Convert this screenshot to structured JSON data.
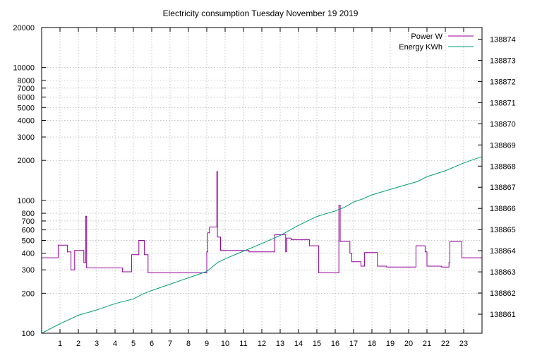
{
  "chart_data": {
    "type": "line",
    "title": "Electricity consumption Tuesday November 19 2019",
    "xlabel": "",
    "ylabel": "",
    "y2label": "",
    "grid": true,
    "legend_position": "top-right",
    "xlim": [
      0,
      24
    ],
    "x_ticks": [
      1,
      2,
      3,
      4,
      5,
      6,
      7,
      8,
      9,
      10,
      11,
      12,
      13,
      14,
      15,
      16,
      17,
      18,
      19,
      20,
      21,
      22,
      23
    ],
    "y_scale": "log",
    "ylim": [
      100,
      20000
    ],
    "y_ticks": [
      100,
      200,
      300,
      400,
      500,
      600,
      700,
      800,
      1000,
      2000,
      3000,
      4000,
      5000,
      6000,
      7000,
      8000,
      10000,
      20000
    ],
    "y2lim": [
      138860.1,
      138874.55
    ],
    "y2_ticks": [
      138861,
      138862,
      138863,
      138864,
      138865,
      138866,
      138867,
      138868,
      138869,
      138870,
      138871,
      138872,
      138873,
      138874
    ],
    "series": [
      {
        "name": "Power W",
        "axis": "left",
        "color": "#94009b",
        "points": [
          [
            0,
            370
          ],
          [
            0.9,
            370
          ],
          [
            0.9,
            460
          ],
          [
            1.4,
            460
          ],
          [
            1.4,
            410
          ],
          [
            1.6,
            410
          ],
          [
            1.6,
            300
          ],
          [
            1.8,
            300
          ],
          [
            1.8,
            420
          ],
          [
            2.3,
            420
          ],
          [
            2.3,
            340
          ],
          [
            2.4,
            340
          ],
          [
            2.4,
            760
          ],
          [
            2.45,
            760
          ],
          [
            2.45,
            310
          ],
          [
            4.4,
            310
          ],
          [
            4.4,
            290
          ],
          [
            4.9,
            290
          ],
          [
            4.9,
            390
          ],
          [
            5.3,
            390
          ],
          [
            5.3,
            500
          ],
          [
            5.6,
            500
          ],
          [
            5.6,
            390
          ],
          [
            5.8,
            390
          ],
          [
            5.8,
            285
          ],
          [
            9.0,
            285
          ],
          [
            9.0,
            410
          ],
          [
            9.05,
            410
          ],
          [
            9.05,
            570
          ],
          [
            9.15,
            570
          ],
          [
            9.15,
            630
          ],
          [
            9.55,
            630
          ],
          [
            9.55,
            1650
          ],
          [
            9.58,
            1650
          ],
          [
            9.58,
            530
          ],
          [
            9.75,
            530
          ],
          [
            9.75,
            420
          ],
          [
            11.3,
            420
          ],
          [
            11.3,
            410
          ],
          [
            12.7,
            410
          ],
          [
            12.7,
            550
          ],
          [
            13.3,
            550
          ],
          [
            13.3,
            410
          ],
          [
            13.35,
            410
          ],
          [
            13.35,
            520
          ],
          [
            13.6,
            520
          ],
          [
            13.6,
            505
          ],
          [
            14.6,
            505
          ],
          [
            14.6,
            455
          ],
          [
            15.1,
            455
          ],
          [
            15.1,
            285
          ],
          [
            16.2,
            285
          ],
          [
            16.2,
            920
          ],
          [
            16.27,
            920
          ],
          [
            16.27,
            490
          ],
          [
            16.8,
            490
          ],
          [
            16.8,
            400
          ],
          [
            16.9,
            400
          ],
          [
            16.9,
            345
          ],
          [
            17.4,
            345
          ],
          [
            17.4,
            320
          ],
          [
            17.6,
            320
          ],
          [
            17.6,
            405
          ],
          [
            18.3,
            405
          ],
          [
            18.3,
            320
          ],
          [
            18.8,
            320
          ],
          [
            18.8,
            315
          ],
          [
            20.4,
            315
          ],
          [
            20.4,
            455
          ],
          [
            20.9,
            455
          ],
          [
            20.9,
            410
          ],
          [
            21.0,
            410
          ],
          [
            21.0,
            320
          ],
          [
            21.8,
            320
          ],
          [
            21.8,
            315
          ],
          [
            22.2,
            315
          ],
          [
            22.2,
            340
          ],
          [
            22.25,
            340
          ],
          [
            22.25,
            490
          ],
          [
            22.9,
            490
          ],
          [
            22.9,
            370
          ],
          [
            24,
            370
          ]
        ]
      },
      {
        "name": "Energy KWh",
        "axis": "right",
        "color": "#009e73",
        "points": [
          [
            0,
            138860.1
          ],
          [
            1,
            138860.55
          ],
          [
            2,
            138860.95
          ],
          [
            3,
            138861.2
          ],
          [
            4,
            138861.5
          ],
          [
            5,
            138861.72
          ],
          [
            5.5,
            138861.95
          ],
          [
            6,
            138862.12
          ],
          [
            7,
            138862.42
          ],
          [
            8,
            138862.72
          ],
          [
            9,
            138863.02
          ],
          [
            9.6,
            138863.45
          ],
          [
            10,
            138863.62
          ],
          [
            11,
            138863.98
          ],
          [
            12,
            138864.34
          ],
          [
            13,
            138864.72
          ],
          [
            14,
            138865.2
          ],
          [
            15,
            138865.62
          ],
          [
            16,
            138865.88
          ],
          [
            16.5,
            138866.05
          ],
          [
            17,
            138866.3
          ],
          [
            17.5,
            138866.45
          ],
          [
            18,
            138866.64
          ],
          [
            19,
            138866.9
          ],
          [
            20,
            138867.15
          ],
          [
            20.5,
            138867.28
          ],
          [
            21,
            138867.5
          ],
          [
            22,
            138867.78
          ],
          [
            23,
            138868.15
          ],
          [
            24,
            138868.45
          ]
        ]
      }
    ]
  }
}
